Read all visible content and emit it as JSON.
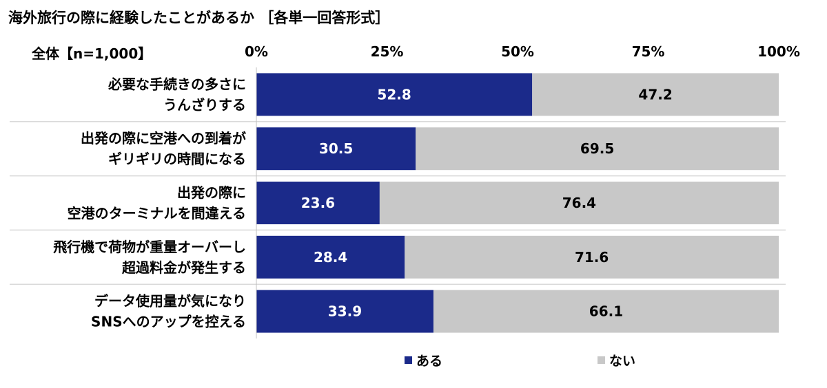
{
  "title": "海外旅行の際に経験したことがあるか ［各単一回答形式］",
  "subtitle": "全体【n=1,000】",
  "colors": {
    "series1": "#1b2a8a",
    "series2": "#c8c8c8",
    "separator": "#d9d9d9"
  },
  "chart_data": {
    "type": "bar",
    "orientation": "horizontal",
    "stacked": true,
    "xlim": [
      0,
      100
    ],
    "xticks": [
      "0%",
      "25%",
      "50%",
      "75%",
      "100%"
    ],
    "categories": [
      [
        "必要な手続きの多さに",
        "うんざりする"
      ],
      [
        "出発の際に空港への到着が",
        "ギリギリの時間になる"
      ],
      [
        "出発の際に",
        "空港のターミナルを間違える"
      ],
      [
        "飛行機で荷物が重量オーバーし",
        "超過料金が発生する"
      ],
      [
        "データ使用量が気になり",
        "SNSへのアップを控える"
      ]
    ],
    "series": [
      {
        "name": "ある",
        "values": [
          52.8,
          30.5,
          23.6,
          28.4,
          33.9
        ]
      },
      {
        "name": "ない",
        "values": [
          47.2,
          69.5,
          76.4,
          71.6,
          66.1
        ]
      }
    ],
    "legend": "bottom"
  }
}
